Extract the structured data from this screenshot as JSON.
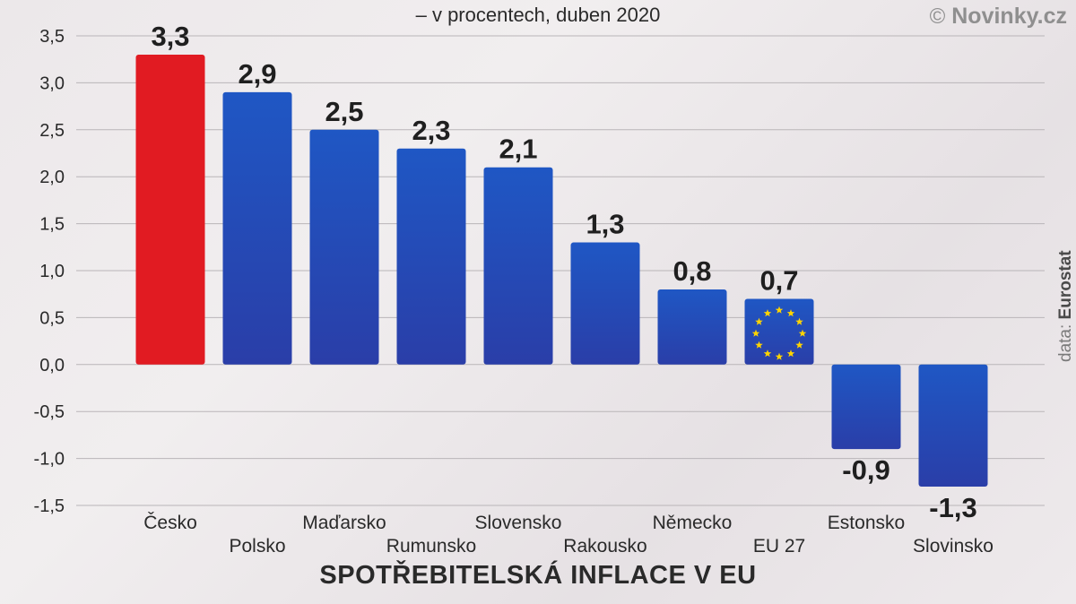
{
  "header": {
    "subtitle": "– v procentech, duben 2020",
    "brand_symbol": "©",
    "brand_name": "Novinky.cz"
  },
  "source": {
    "prefix": "data:",
    "name": "Eurostat"
  },
  "colors": {
    "highlight": "#e11b22",
    "bar_top": "#1f57c4",
    "bar_bottom": "#2a3ea8",
    "grid": "#b9b5b8",
    "eu_star": "#ffd400"
  },
  "icons": {
    "eu_flag": "eu-flag-icon"
  },
  "chart_data": {
    "type": "bar",
    "title": "SPOTŘEBITELSKÁ INFLACE V EU",
    "subtitle": "– v procentech, duben 2020",
    "categories": [
      "Česko",
      "Polsko",
      "Maďarsko",
      "Rumunsko",
      "Slovensko",
      "Rakousko",
      "Německo",
      "EU 27",
      "Estonsko",
      "Slovinsko"
    ],
    "values": [
      3.3,
      2.9,
      2.5,
      2.3,
      2.1,
      1.3,
      0.8,
      0.7,
      -0.9,
      -1.3
    ],
    "value_labels": [
      "3,3",
      "2,9",
      "2,5",
      "2,3",
      "2,1",
      "1,3",
      "0,8",
      "0,7",
      "-0,9",
      "-1,3"
    ],
    "highlight_category": "Česko",
    "eu_flag_category": "EU 27",
    "ylim": [
      -1.5,
      3.5
    ],
    "yticks": [
      3.5,
      3.0,
      2.5,
      2.0,
      1.5,
      1.0,
      0.5,
      0.0,
      -0.5,
      -1.0,
      -1.5
    ],
    "ytick_labels": [
      "3,5",
      "3,0",
      "2,5",
      "2,0",
      "1,5",
      "1,0",
      "0,5",
      "0,0",
      "-0,5",
      "-1,0",
      "-1,5"
    ],
    "grid": true,
    "xlabel": "",
    "ylabel": ""
  }
}
